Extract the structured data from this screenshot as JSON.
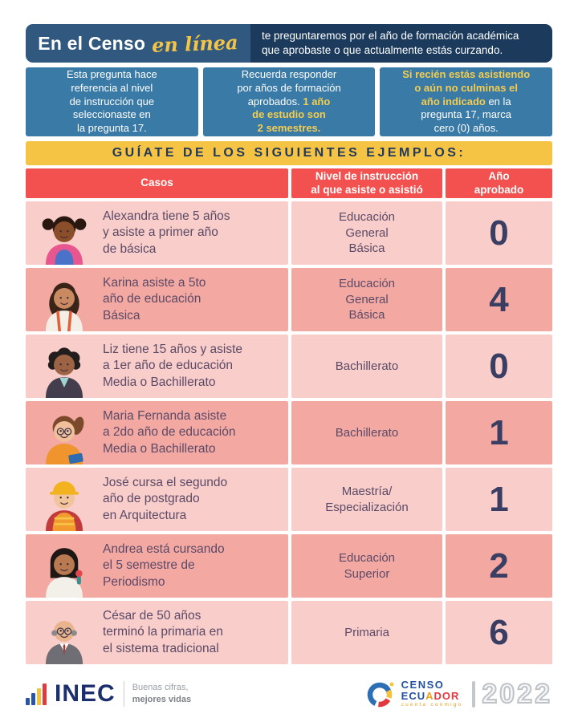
{
  "header": {
    "brand_bold": "En el Censo",
    "brand_script": "en línea",
    "description": "te preguntaremos por el año de formación académica\nque aprobaste o que actualmente estás curzando."
  },
  "info_boxes": [
    {
      "text_before": "Esta pregunta hace\nreferencia al nivel\nde instrucción que\nseleccionaste en\nla pregunta 17.",
      "highlight": "",
      "text_after": ""
    },
    {
      "text_before": "Recuerda responder\npor años de formación\naprobados. ",
      "highlight": "1 año\nde estudio son\n2 semestres.",
      "text_after": ""
    },
    {
      "text_before": "",
      "highlight": "Si recién estás asistiendo\no aún no culminas el\naño indicado",
      "text_after": " en la\npregunta 17, marca\ncero (0) años."
    }
  ],
  "banner": {
    "title": "GUÍATE DE LOS SIGUIENTES EJEMPLOS:"
  },
  "table": {
    "headers": [
      "Casos",
      "Nivel de instrucción\nal que asiste o asistió",
      "Año\naprobado"
    ],
    "rows": [
      {
        "case": "Alexandra tiene 5 años\ny asiste a primer año\nde básica",
        "level": "Educación\nGeneral\nBásica",
        "years": "0",
        "avatar": {
          "label": "avatar-girl-pigtails-waving",
          "type": "pigtails",
          "skin": "#8a4f2a",
          "hair": "#2a1710",
          "shirt": "#e8568f",
          "accent": "#4a72c8",
          "glasses": false
        }
      },
      {
        "case": "Karina asiste a 5to\naño de educación\nBásica",
        "level": "Educación\nGeneral\nBásica",
        "years": "4",
        "avatar": {
          "label": "avatar-girl-long-hair-backpack",
          "type": "longhair",
          "skin": "#c98a62",
          "hair": "#3a2417",
          "shirt": "#f3efe6",
          "accent": "#e0613a",
          "glasses": false
        }
      },
      {
        "case": "Liz tiene 15 años y asiste\na 1er año de educación\nMedia o Bachillerato",
        "level": "Bachillerato",
        "years": "0",
        "avatar": {
          "label": "avatar-woman-curly-hair-pointing",
          "type": "curly",
          "skin": "#9c6444",
          "hair": "#241d1d",
          "shirt": "#433d4e",
          "accent": "#9fd4cf",
          "glasses": false
        }
      },
      {
        "case": "Maria Fernanda asiste\na 2do año de educación\nMedia o Bachillerato",
        "level": "Bachillerato",
        "years": "1",
        "avatar": {
          "label": "avatar-woman-ponytail-glasses-book",
          "type": "ponytail",
          "skin": "#f0c09a",
          "hair": "#7a4a2a",
          "shirt": "#f0942e",
          "accent": "#2f6bb0",
          "glasses": true
        }
      },
      {
        "case": "José cursa el segundo\naño de postgrado\nen Arquitectura",
        "level": "Maestría/\nEspecialización",
        "years": "1",
        "avatar": {
          "label": "avatar-man-hardhat-architect",
          "type": "hardhat",
          "skin": "#f2c49c",
          "hair": "#2a1710",
          "shirt": "#c23b3b",
          "accent": "#f2b31f",
          "glasses": false
        }
      },
      {
        "case": "Andrea está cursando\nel 5 semestre de\nPeriodismo",
        "level": "Educación\nSuperior",
        "years": "2",
        "avatar": {
          "label": "avatar-woman-reporter-microphone",
          "type": "mic",
          "skin": "#b97a52",
          "hair": "#1d1716",
          "shirt": "#f3f0ea",
          "accent": "#e0484e",
          "glasses": false
        }
      },
      {
        "case": "César de 50 años\nterminó la primaria en\nel sistema tradicional",
        "level": "Primaria",
        "years": "6",
        "avatar": {
          "label": "avatar-elder-man-glasses-suit",
          "type": "elder",
          "skin": "#e8b48e",
          "hair": "#8a8a8a",
          "shirt": "#6e6e74",
          "accent": "#b03030",
          "glasses": true
        }
      }
    ]
  },
  "footer": {
    "inec": {
      "logo_text": "INEC",
      "slogan_line1": "Buenas cifras,",
      "slogan_line2": "mejores vidas"
    },
    "censo": {
      "line1": "CENSO",
      "line2_segments": [
        {
          "text": "ECU",
          "color": "#2350a0"
        },
        {
          "text": "A",
          "color": "#f0a01e"
        },
        {
          "text": "DOR",
          "color": "#e0393e"
        }
      ],
      "tagline": "cuenta conmigo",
      "year": "2022"
    }
  },
  "colors": {
    "header_left_blue": "#31597f",
    "header_right_navy": "#1b3a5c",
    "info_box_blue": "#3a7aa6",
    "highlight_yellow": "#f5cd4e",
    "banner_yellow": "#f5c445",
    "table_header_red": "#f25150",
    "row_pink_light": "#f9cdc9",
    "row_pink_dark": "#f4a8a2",
    "case_text_purple": "#5b4a67",
    "number_navy": "#3b3e63"
  }
}
